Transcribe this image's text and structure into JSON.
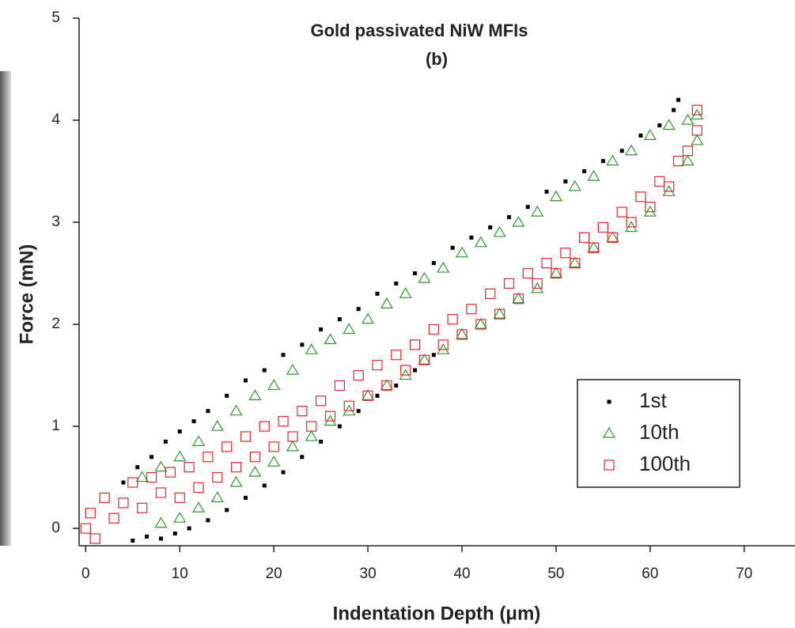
{
  "chart_data": {
    "type": "scatter",
    "title": "Gold passivated NiW MFIs",
    "subtitle": "(b)",
    "x_label": "Indentation Depth (μm)",
    "y_label": "Force (mN)",
    "xlim": [
      -0.7,
      75.4
    ],
    "ylim": [
      -0.17,
      5
    ],
    "xticks": [
      0,
      10,
      20,
      30,
      40,
      50,
      60,
      70
    ],
    "yticks": [
      0,
      1,
      2,
      3,
      4,
      5
    ],
    "legend": "lower right",
    "series": [
      {
        "name": "1st",
        "color": "#000000",
        "marker": "filled-square",
        "x": [
          4,
          5.5,
          7,
          8.5,
          10,
          11.5,
          13,
          15,
          17,
          19,
          21,
          23,
          25,
          27,
          29,
          31,
          33,
          35,
          37,
          39,
          41,
          43,
          45,
          47,
          49,
          51,
          53,
          55,
          57,
          59,
          61,
          62.5,
          63,
          5,
          6.5,
          8,
          9.5,
          11,
          13,
          15,
          17,
          19,
          21,
          23,
          25,
          27,
          29,
          31,
          33,
          35,
          37
        ],
        "values": [
          0.45,
          0.6,
          0.7,
          0.85,
          0.95,
          1.05,
          1.15,
          1.3,
          1.45,
          1.55,
          1.7,
          1.8,
          1.95,
          2.05,
          2.15,
          2.3,
          2.4,
          2.5,
          2.6,
          2.75,
          2.85,
          2.95,
          3.05,
          3.15,
          3.3,
          3.4,
          3.5,
          3.6,
          3.7,
          3.85,
          3.95,
          4.1,
          4.2,
          -0.12,
          -0.08,
          -0.1,
          -0.05,
          0.0,
          0.08,
          0.18,
          0.3,
          0.42,
          0.55,
          0.7,
          0.85,
          1.0,
          1.15,
          1.3,
          1.4,
          1.55,
          1.7
        ]
      },
      {
        "name": "10th",
        "color": "#2e9a2e",
        "marker": "triangle",
        "x": [
          6,
          8,
          10,
          12,
          14,
          16,
          18,
          20,
          22,
          24,
          26,
          28,
          30,
          32,
          34,
          36,
          38,
          40,
          42,
          44,
          46,
          48,
          50,
          52,
          54,
          56,
          58,
          60,
          62,
          64,
          65,
          8,
          10,
          12,
          14,
          16,
          18,
          20,
          22,
          24,
          26,
          28,
          30,
          32,
          34,
          36,
          38,
          40,
          42,
          44,
          46,
          48,
          50,
          52,
          54,
          56,
          58,
          60,
          62,
          64,
          65
        ],
        "values": [
          0.5,
          0.6,
          0.7,
          0.85,
          1.0,
          1.15,
          1.3,
          1.4,
          1.55,
          1.75,
          1.85,
          1.95,
          2.05,
          2.2,
          2.3,
          2.45,
          2.55,
          2.7,
          2.8,
          2.9,
          3.0,
          3.1,
          3.25,
          3.35,
          3.45,
          3.6,
          3.7,
          3.85,
          3.95,
          4.0,
          4.05,
          0.05,
          0.1,
          0.2,
          0.3,
          0.45,
          0.55,
          0.65,
          0.8,
          0.9,
          1.05,
          1.15,
          1.3,
          1.4,
          1.5,
          1.65,
          1.75,
          1.9,
          2.0,
          2.1,
          2.25,
          2.35,
          2.5,
          2.6,
          2.75,
          2.85,
          2.95,
          3.1,
          3.3,
          3.6,
          3.8
        ]
      },
      {
        "name": "100th",
        "color": "#e8252a",
        "marker": "square",
        "x": [
          0,
          0.5,
          1,
          2,
          3,
          4,
          5,
          6,
          7,
          8,
          9,
          10,
          11,
          12,
          13,
          14,
          15,
          16,
          17,
          18,
          19,
          20,
          21,
          22,
          23,
          24,
          25,
          26,
          27,
          28,
          29,
          30,
          31,
          32,
          33,
          34,
          35,
          36,
          37,
          38,
          39,
          40,
          41,
          42,
          43,
          44,
          45,
          46,
          47,
          48,
          49,
          50,
          51,
          52,
          53,
          54,
          55,
          56,
          57,
          58,
          59,
          60,
          61,
          62,
          63,
          64,
          65,
          65
        ],
        "values": [
          0.0,
          0.15,
          -0.1,
          0.3,
          0.1,
          0.25,
          0.45,
          0.2,
          0.5,
          0.35,
          0.55,
          0.3,
          0.6,
          0.4,
          0.7,
          0.5,
          0.8,
          0.6,
          0.9,
          0.7,
          1.0,
          0.8,
          1.05,
          0.9,
          1.15,
          1.0,
          1.25,
          1.1,
          1.4,
          1.2,
          1.5,
          1.3,
          1.6,
          1.4,
          1.7,
          1.55,
          1.8,
          1.65,
          1.95,
          1.8,
          2.05,
          1.9,
          2.15,
          2.0,
          2.3,
          2.1,
          2.4,
          2.25,
          2.5,
          2.4,
          2.6,
          2.5,
          2.7,
          2.6,
          2.85,
          2.75,
          2.95,
          2.85,
          3.1,
          3.0,
          3.25,
          3.15,
          3.4,
          3.35,
          3.6,
          3.7,
          3.9,
          4.1
        ]
      }
    ]
  }
}
